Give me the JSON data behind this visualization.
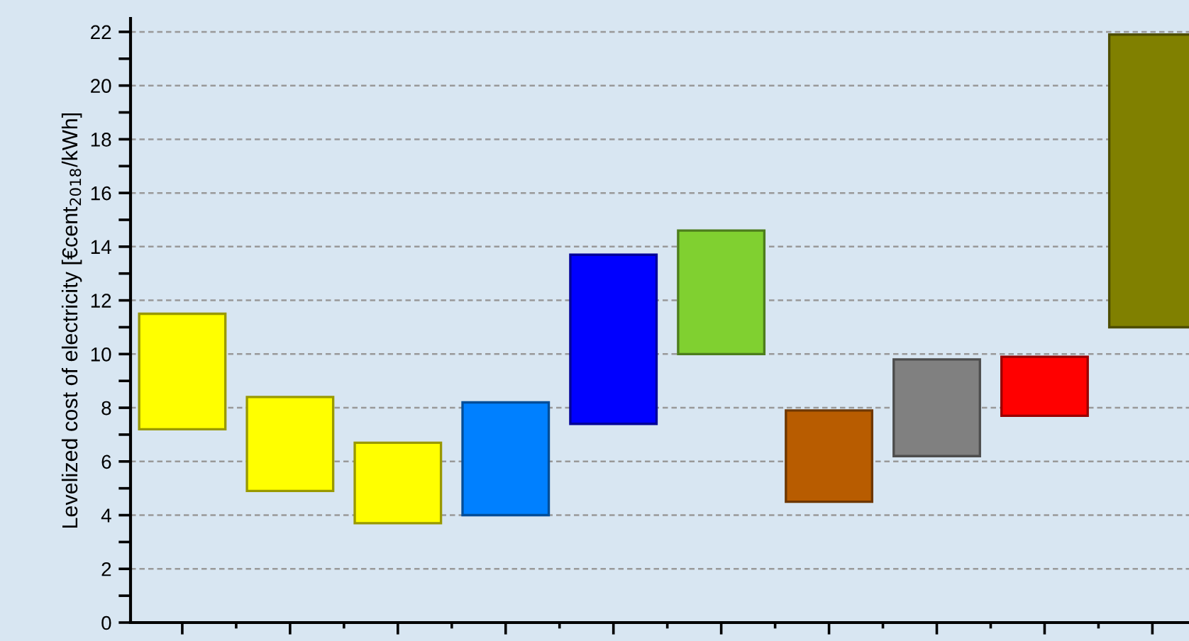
{
  "chart_data": {
    "type": "bar",
    "ylabel": "Levelized cost of electricity [€cent$_{2018}$/kWh]",
    "categories": [
      null,
      null,
      null,
      null,
      null,
      null,
      null,
      null,
      null,
      null
    ],
    "base": [
      7.2,
      4.9,
      3.7,
      4.0,
      7.4,
      10.0,
      4.5,
      6.2,
      7.7,
      11.0
    ],
    "values": [
      4.3,
      3.5,
      3.0,
      4.2,
      6.3,
      4.6,
      3.4,
      3.6,
      2.2,
      10.9
    ],
    "colors": [
      "#ffff00",
      "#ffff00",
      "#ffff00",
      "#0080ff",
      "#0000ff",
      "#80d030",
      "#b85c00",
      "#808080",
      "#ff0000",
      "#808000"
    ],
    "ylim": [
      0,
      22.5
    ],
    "yticks": [
      0,
      {
        "value": 1,
        "label": null
      },
      2,
      {
        "value": 3,
        "label": null
      },
      4,
      {
        "value": 5,
        "label": null
      },
      6,
      {
        "value": 7,
        "label": null
      },
      8,
      {
        "value": 9,
        "label": null
      },
      10,
      {
        "value": 11,
        "label": null
      },
      12,
      {
        "value": 13,
        "label": null
      },
      14,
      {
        "value": 15,
        "label": null
      },
      16,
      {
        "value": 17,
        "label": null
      },
      18,
      {
        "value": 19,
        "label": null
      },
      20,
      {
        "value": 21,
        "label": null
      },
      22
    ],
    "grid": "y"
  }
}
